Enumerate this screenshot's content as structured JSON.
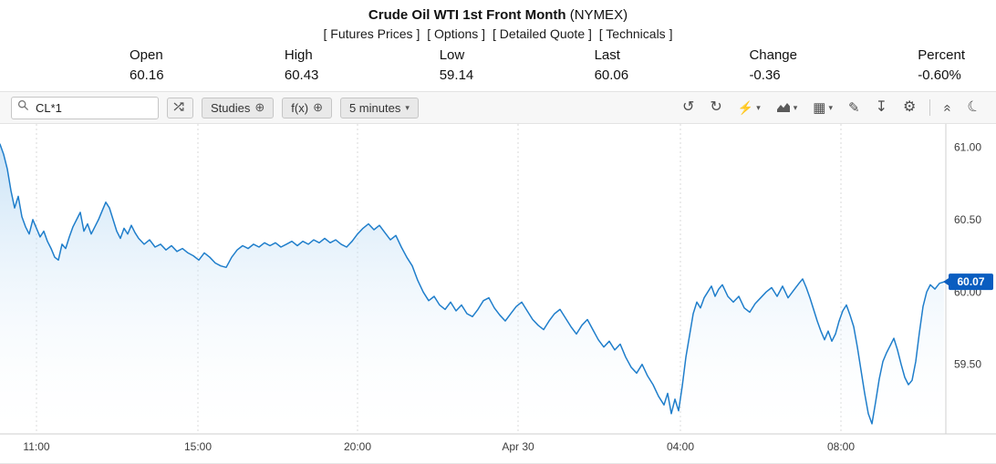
{
  "header": {
    "title": "Crude Oil WTI 1st Front Month",
    "exchange": "(NYMEX)",
    "links": [
      "[ Futures Prices ]",
      "[ Options ]",
      "[ Detailed Quote ]",
      "[ Technicals ]"
    ],
    "quote": {
      "fields": [
        {
          "label": "Open",
          "value": "60.16"
        },
        {
          "label": "High",
          "value": "60.43"
        },
        {
          "label": "Low",
          "value": "59.14"
        },
        {
          "label": "Last",
          "value": "60.06"
        },
        {
          "label": "Change",
          "value": "-0.36"
        },
        {
          "label": "Percent",
          "value": "-0.60%"
        }
      ]
    },
    "negative_color": "#e03131"
  },
  "toolbar": {
    "symbol_input": "CL*1",
    "studies_label": "Studies",
    "fx_label": "f(x)",
    "interval_label": "5 minutes",
    "icons": {
      "search": "search-icon",
      "compare": "compare-icon",
      "plus_circle": "⊕",
      "caret": "▾",
      "undo": "↺",
      "redo": "↻",
      "events": "⚡",
      "grid": "▦",
      "draw": "✎",
      "download": "↧",
      "settings": "⚙",
      "collapse": "«",
      "theme": "☾"
    }
  },
  "chart_data": {
    "type": "area",
    "title": "Crude Oil WTI 1st Front Month (NYMEX) 5 minute chart",
    "x_domain": [
      0,
      1037
    ],
    "y_domain": [
      59.02,
      61.16
    ],
    "y_ticks": [
      {
        "value": 61.0,
        "label": "61.00"
      },
      {
        "value": 60.5,
        "label": "60.50"
      },
      {
        "value": 60.0,
        "label": "60.00"
      },
      {
        "value": 59.5,
        "label": "59.50"
      }
    ],
    "x_ticks": [
      {
        "x": 40,
        "label": "11:00"
      },
      {
        "x": 217,
        "label": "15:00"
      },
      {
        "x": 392,
        "label": "20:00"
      },
      {
        "x": 568,
        "label": "Apr 30"
      },
      {
        "x": 746,
        "label": "04:00"
      },
      {
        "x": 922,
        "label": "08:00"
      }
    ],
    "last_price": {
      "value": 60.07,
      "label": "60.07"
    },
    "line_color": "#1f7ecb",
    "fill_color": "#aed4f2",
    "badge_color": "#0a5dc0",
    "grid_color": "#d9d9d9",
    "border_color": "#cfcfcf",
    "points": [
      [
        0,
        61.02
      ],
      [
        4,
        60.95
      ],
      [
        8,
        60.85
      ],
      [
        12,
        60.7
      ],
      [
        16,
        60.58
      ],
      [
        20,
        60.66
      ],
      [
        24,
        60.52
      ],
      [
        28,
        60.45
      ],
      [
        32,
        60.4
      ],
      [
        36,
        60.5
      ],
      [
        40,
        60.44
      ],
      [
        44,
        60.38
      ],
      [
        48,
        60.42
      ],
      [
        52,
        60.35
      ],
      [
        56,
        60.3
      ],
      [
        60,
        60.24
      ],
      [
        64,
        60.22
      ],
      [
        68,
        60.33
      ],
      [
        72,
        60.3
      ],
      [
        76,
        60.38
      ],
      [
        80,
        60.45
      ],
      [
        84,
        60.5
      ],
      [
        88,
        60.55
      ],
      [
        92,
        60.42
      ],
      [
        96,
        60.47
      ],
      [
        100,
        60.4
      ],
      [
        104,
        60.45
      ],
      [
        108,
        60.5
      ],
      [
        112,
        60.56
      ],
      [
        116,
        60.62
      ],
      [
        120,
        60.58
      ],
      [
        124,
        60.5
      ],
      [
        128,
        60.42
      ],
      [
        132,
        60.37
      ],
      [
        136,
        60.44
      ],
      [
        140,
        60.4
      ],
      [
        144,
        60.46
      ],
      [
        148,
        60.41
      ],
      [
        152,
        60.37
      ],
      [
        158,
        60.33
      ],
      [
        164,
        60.36
      ],
      [
        170,
        60.31
      ],
      [
        176,
        60.33
      ],
      [
        182,
        60.29
      ],
      [
        188,
        60.32
      ],
      [
        194,
        60.28
      ],
      [
        200,
        60.3
      ],
      [
        206,
        60.27
      ],
      [
        212,
        60.25
      ],
      [
        218,
        60.22
      ],
      [
        224,
        60.27
      ],
      [
        230,
        60.24
      ],
      [
        236,
        60.2
      ],
      [
        242,
        60.18
      ],
      [
        248,
        60.17
      ],
      [
        254,
        60.24
      ],
      [
        260,
        60.29
      ],
      [
        266,
        60.32
      ],
      [
        272,
        60.3
      ],
      [
        278,
        60.33
      ],
      [
        284,
        60.31
      ],
      [
        290,
        60.34
      ],
      [
        296,
        60.32
      ],
      [
        302,
        60.34
      ],
      [
        308,
        60.31
      ],
      [
        314,
        60.33
      ],
      [
        320,
        60.35
      ],
      [
        326,
        60.32
      ],
      [
        332,
        60.35
      ],
      [
        338,
        60.33
      ],
      [
        344,
        60.36
      ],
      [
        350,
        60.34
      ],
      [
        356,
        60.37
      ],
      [
        362,
        60.34
      ],
      [
        368,
        60.36
      ],
      [
        374,
        60.33
      ],
      [
        380,
        60.31
      ],
      [
        386,
        60.35
      ],
      [
        392,
        60.4
      ],
      [
        398,
        60.44
      ],
      [
        404,
        60.47
      ],
      [
        410,
        60.43
      ],
      [
        416,
        60.46
      ],
      [
        422,
        60.41
      ],
      [
        428,
        60.36
      ],
      [
        434,
        60.39
      ],
      [
        440,
        60.31
      ],
      [
        446,
        60.24
      ],
      [
        452,
        60.18
      ],
      [
        458,
        60.08
      ],
      [
        464,
        60.0
      ],
      [
        470,
        59.94
      ],
      [
        476,
        59.97
      ],
      [
        482,
        59.91
      ],
      [
        488,
        59.88
      ],
      [
        494,
        59.93
      ],
      [
        500,
        59.87
      ],
      [
        506,
        59.91
      ],
      [
        512,
        59.85
      ],
      [
        518,
        59.83
      ],
      [
        524,
        59.88
      ],
      [
        530,
        59.94
      ],
      [
        536,
        59.96
      ],
      [
        542,
        59.89
      ],
      [
        548,
        59.84
      ],
      [
        554,
        59.8
      ],
      [
        560,
        59.85
      ],
      [
        566,
        59.9
      ],
      [
        572,
        59.93
      ],
      [
        578,
        59.87
      ],
      [
        584,
        59.81
      ],
      [
        590,
        59.77
      ],
      [
        596,
        59.74
      ],
      [
        602,
        59.8
      ],
      [
        608,
        59.85
      ],
      [
        614,
        59.88
      ],
      [
        620,
        59.82
      ],
      [
        626,
        59.76
      ],
      [
        632,
        59.71
      ],
      [
        638,
        59.77
      ],
      [
        644,
        59.81
      ],
      [
        650,
        59.74
      ],
      [
        656,
        59.67
      ],
      [
        662,
        59.62
      ],
      [
        668,
        59.66
      ],
      [
        674,
        59.6
      ],
      [
        680,
        59.64
      ],
      [
        686,
        59.55
      ],
      [
        692,
        59.48
      ],
      [
        698,
        59.44
      ],
      [
        704,
        59.5
      ],
      [
        710,
        59.42
      ],
      [
        716,
        59.36
      ],
      [
        722,
        59.28
      ],
      [
        728,
        59.22
      ],
      [
        732,
        59.3
      ],
      [
        736,
        59.16
      ],
      [
        740,
        59.26
      ],
      [
        744,
        59.18
      ],
      [
        748,
        59.35
      ],
      [
        752,
        59.55
      ],
      [
        756,
        59.7
      ],
      [
        760,
        59.85
      ],
      [
        764,
        59.93
      ],
      [
        768,
        59.89
      ],
      [
        772,
        59.96
      ],
      [
        776,
        60.0
      ],
      [
        780,
        60.04
      ],
      [
        784,
        59.97
      ],
      [
        788,
        60.02
      ],
      [
        792,
        60.05
      ],
      [
        798,
        59.97
      ],
      [
        804,
        59.93
      ],
      [
        810,
        59.97
      ],
      [
        816,
        59.89
      ],
      [
        822,
        59.86
      ],
      [
        828,
        59.92
      ],
      [
        834,
        59.96
      ],
      [
        840,
        60.0
      ],
      [
        846,
        60.03
      ],
      [
        852,
        59.97
      ],
      [
        858,
        60.04
      ],
      [
        864,
        59.96
      ],
      [
        870,
        60.01
      ],
      [
        876,
        60.06
      ],
      [
        880,
        60.09
      ],
      [
        884,
        60.03
      ],
      [
        888,
        59.96
      ],
      [
        892,
        59.88
      ],
      [
        896,
        59.8
      ],
      [
        900,
        59.73
      ],
      [
        904,
        59.67
      ],
      [
        908,
        59.73
      ],
      [
        912,
        59.66
      ],
      [
        916,
        59.71
      ],
      [
        920,
        59.8
      ],
      [
        924,
        59.87
      ],
      [
        928,
        59.91
      ],
      [
        932,
        59.84
      ],
      [
        936,
        59.76
      ],
      [
        940,
        59.62
      ],
      [
        944,
        59.46
      ],
      [
        948,
        59.3
      ],
      [
        952,
        59.16
      ],
      [
        956,
        59.09
      ],
      [
        960,
        59.24
      ],
      [
        964,
        59.4
      ],
      [
        968,
        59.52
      ],
      [
        972,
        59.58
      ],
      [
        976,
        59.63
      ],
      [
        980,
        59.68
      ],
      [
        984,
        59.6
      ],
      [
        988,
        59.5
      ],
      [
        992,
        59.41
      ],
      [
        996,
        59.36
      ],
      [
        1000,
        59.39
      ],
      [
        1004,
        59.52
      ],
      [
        1008,
        59.72
      ],
      [
        1012,
        59.9
      ],
      [
        1016,
        60.0
      ],
      [
        1020,
        60.05
      ],
      [
        1025,
        60.02
      ],
      [
        1030,
        60.06
      ],
      [
        1035,
        60.07
      ]
    ]
  }
}
